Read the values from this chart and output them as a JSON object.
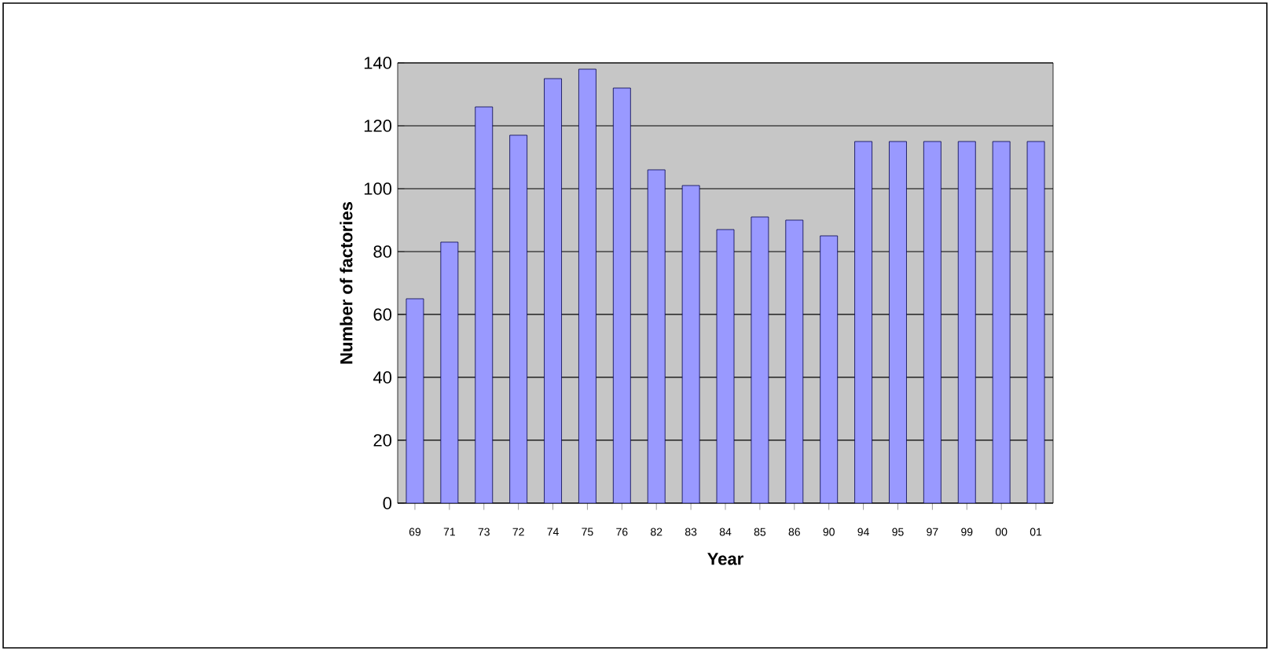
{
  "chart_data": {
    "type": "bar",
    "xlabel": "Year",
    "ylabel": "Number of factories",
    "categories": [
      "69",
      "71",
      "73",
      "72",
      "74",
      "75",
      "76",
      "82",
      "83",
      "84",
      "85",
      "86",
      "90",
      "94",
      "95",
      "97",
      "99",
      "00",
      "01"
    ],
    "values": [
      65,
      83,
      126,
      117,
      135,
      138,
      132,
      106,
      101,
      87,
      91,
      90,
      85,
      115,
      115,
      115,
      115,
      115,
      115
    ],
    "color": "#9999ff",
    "ylim": [
      0,
      140
    ],
    "yticks": [
      0,
      20,
      40,
      60,
      80,
      100,
      120,
      140
    ],
    "grid": "y"
  }
}
